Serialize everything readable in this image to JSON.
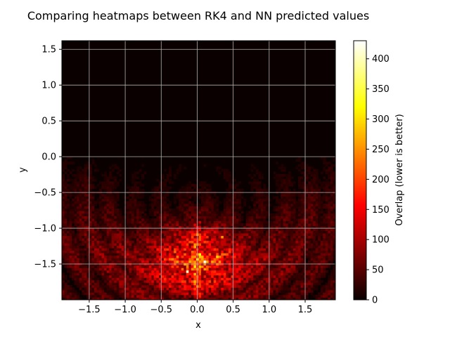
{
  "chart_data": {
    "type": "heatmap",
    "title": "Comparing heatmaps between RK4 and NN predicted values",
    "xlabel": "x",
    "ylabel": "y",
    "xlim": [
      -1.88,
      1.92
    ],
    "ylim": [
      -2.0,
      1.62
    ],
    "xticks": [
      -1.5,
      -1.0,
      -0.5,
      0.0,
      0.5,
      1.0,
      1.5
    ],
    "xtick_labels": [
      "−1.5",
      "−1.0",
      "−0.5",
      "0.0",
      "0.5",
      "1.0",
      "1.5"
    ],
    "yticks": [
      -1.5,
      -1.0,
      -0.5,
      0.0,
      0.5,
      1.0,
      1.5
    ],
    "ytick_labels": [
      "−1.5",
      "−1.0",
      "−0.5",
      "0.0",
      "0.5",
      "1.0",
      "1.5"
    ],
    "grid": true,
    "colormap": "hot",
    "colorbar": {
      "label": "Overlap (lower is better)",
      "range": [
        0,
        430
      ],
      "ticks": [
        0,
        50,
        100,
        150,
        200,
        250,
        300,
        350,
        400
      ],
      "tick_labels": [
        "0",
        "50",
        "100",
        "150",
        "200",
        "250",
        "300",
        "350",
        "400"
      ]
    },
    "intensity_profile": {
      "description_values": "overlap concentrated in lower half, peak near x=0, y=-1.4",
      "peak_location": [
        0.0,
        -1.4
      ],
      "peak_value": 430,
      "background_value": 0
    }
  },
  "colors": {
    "background": "#ffffff",
    "grid": "#b0b0b0",
    "heat_low": "#0a0000",
    "heat_high": "#ffffff"
  }
}
